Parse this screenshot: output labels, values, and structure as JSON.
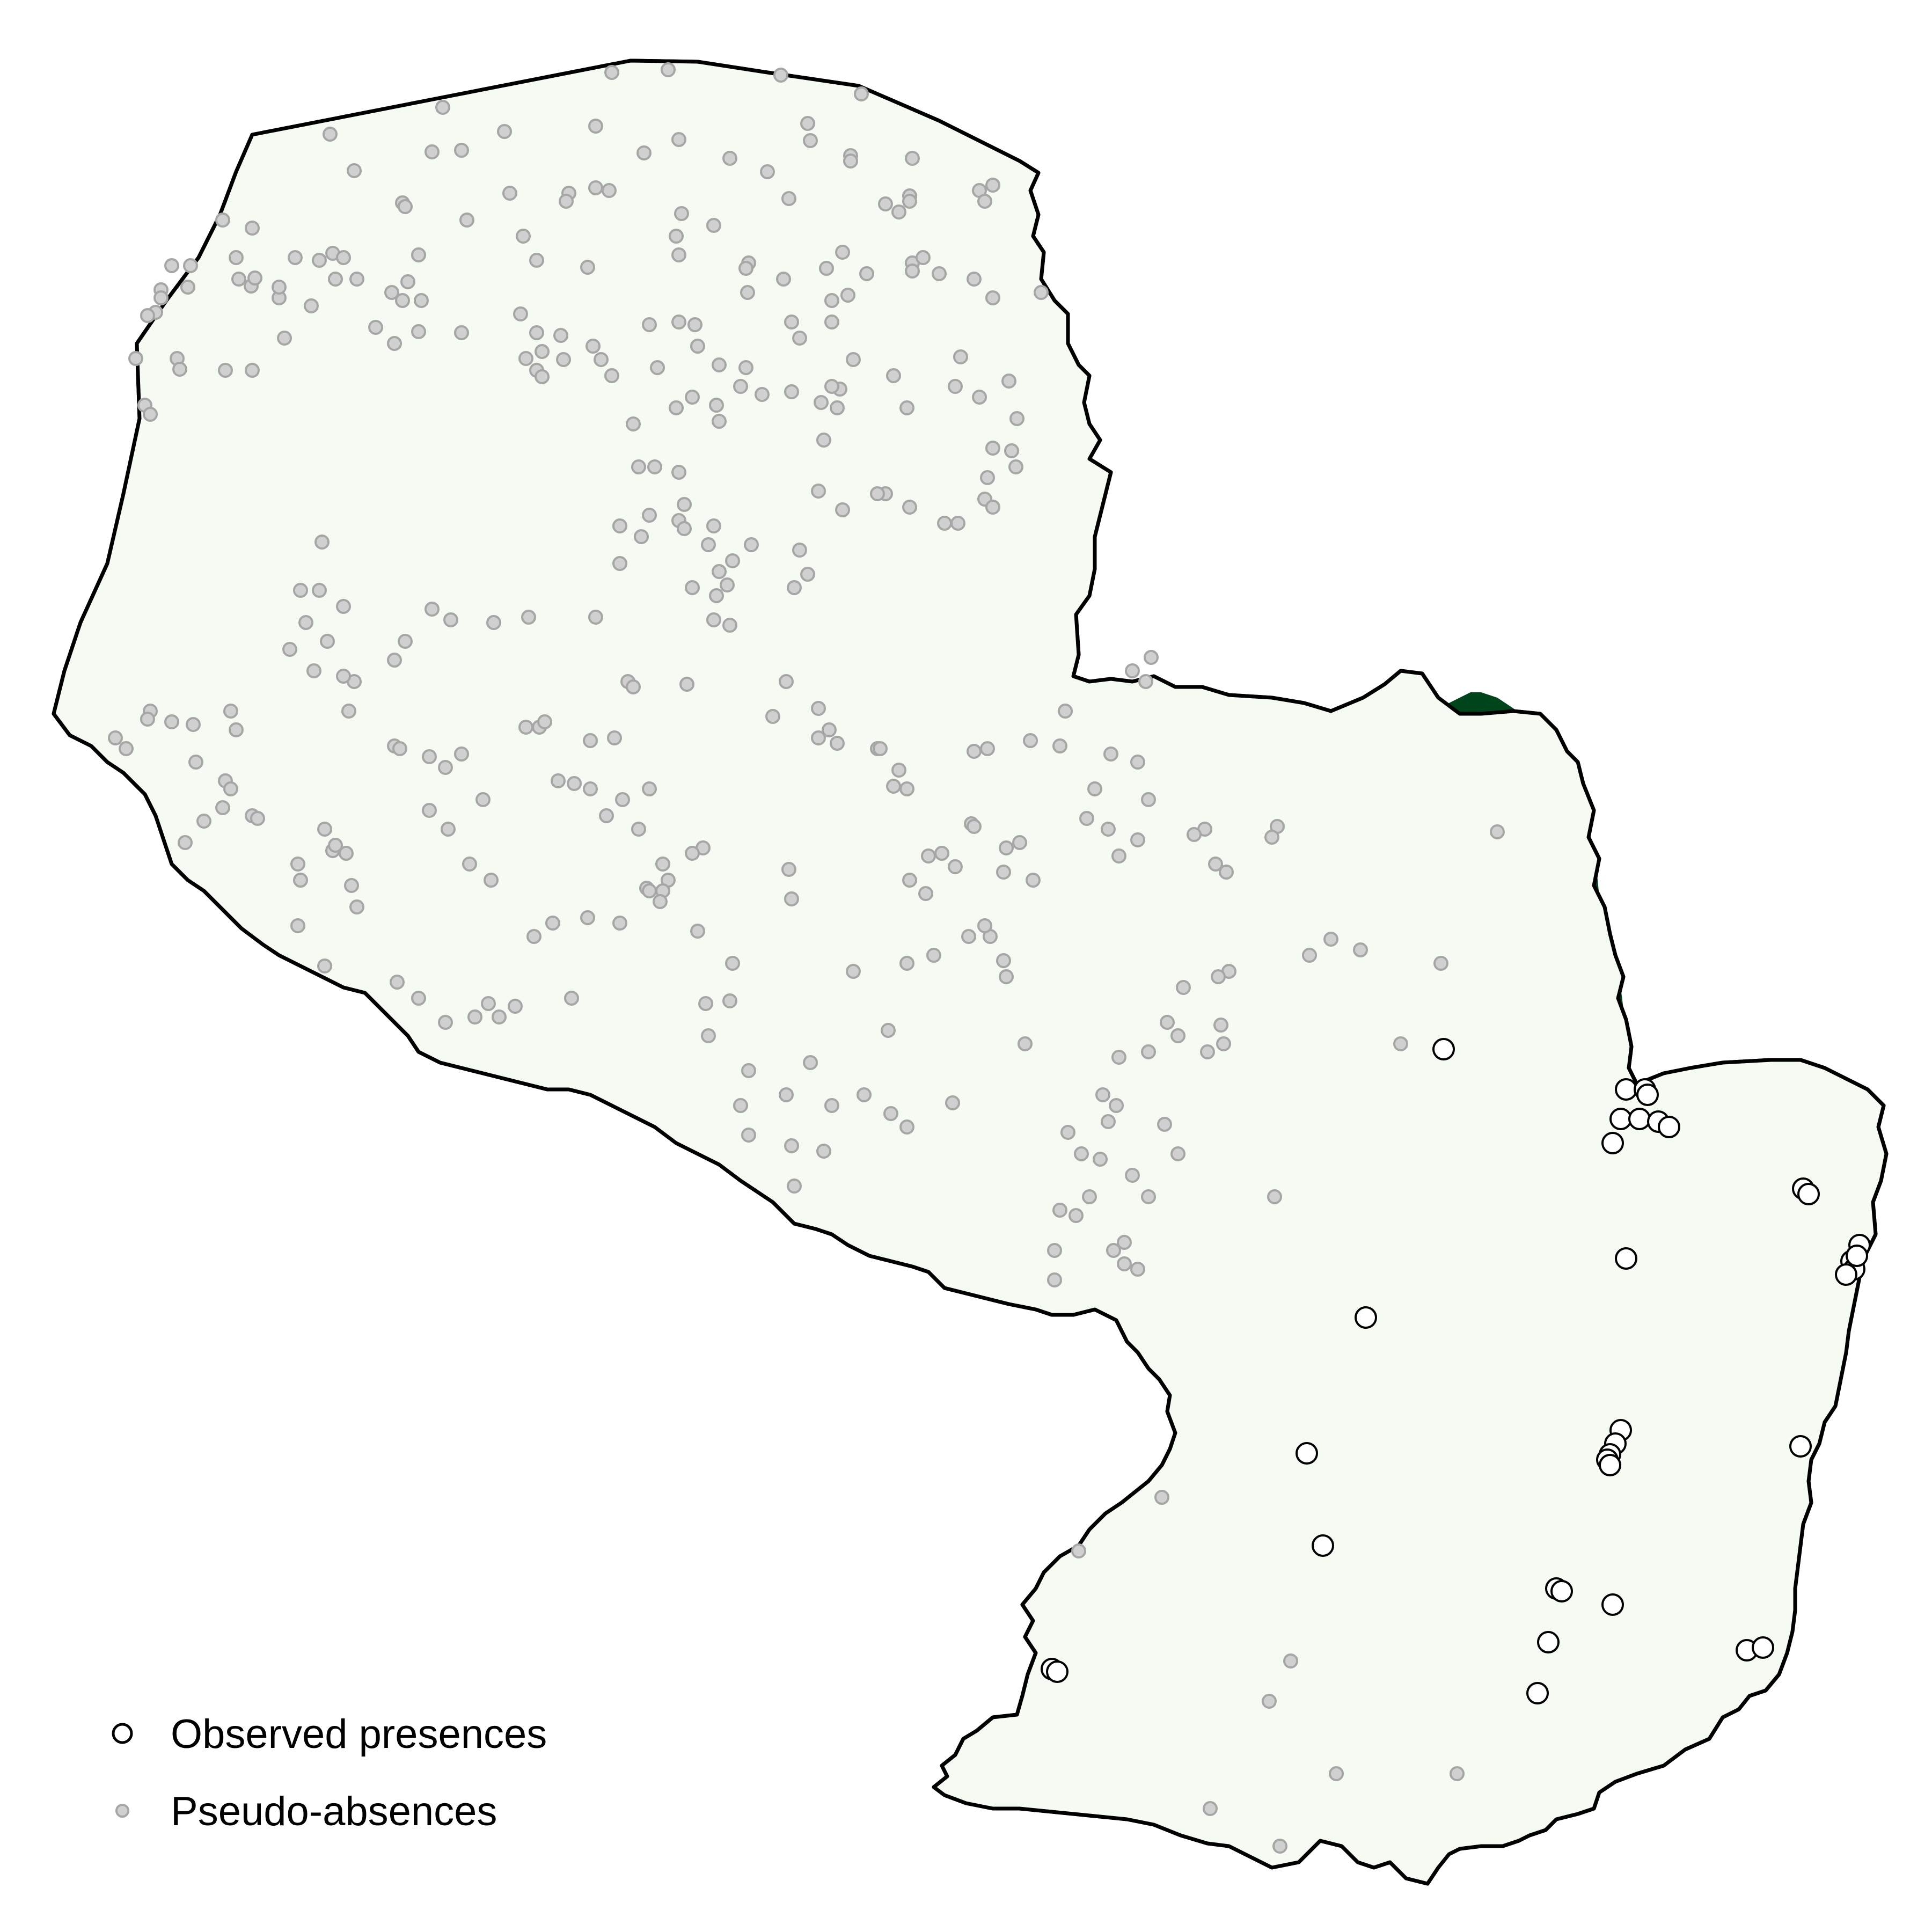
{
  "map": {
    "colors": {
      "background": "#ffffff",
      "unsuitable_fill": "#f5fbf2",
      "suitable_fill": "#00441b",
      "border": "#000000",
      "presence_fill": "#ffffff",
      "presence_stroke": "#000000",
      "pseudo_absence_fill": "#d0d0d0",
      "pseudo_absence_stroke": "#a6a6a6"
    }
  },
  "legend": {
    "placement": "bottom-left",
    "items": [
      {
        "label": "Observed presences",
        "marker": "open-circle"
      },
      {
        "label": "Pseudo-absences",
        "marker": "small-grey-dot"
      }
    ]
  }
}
